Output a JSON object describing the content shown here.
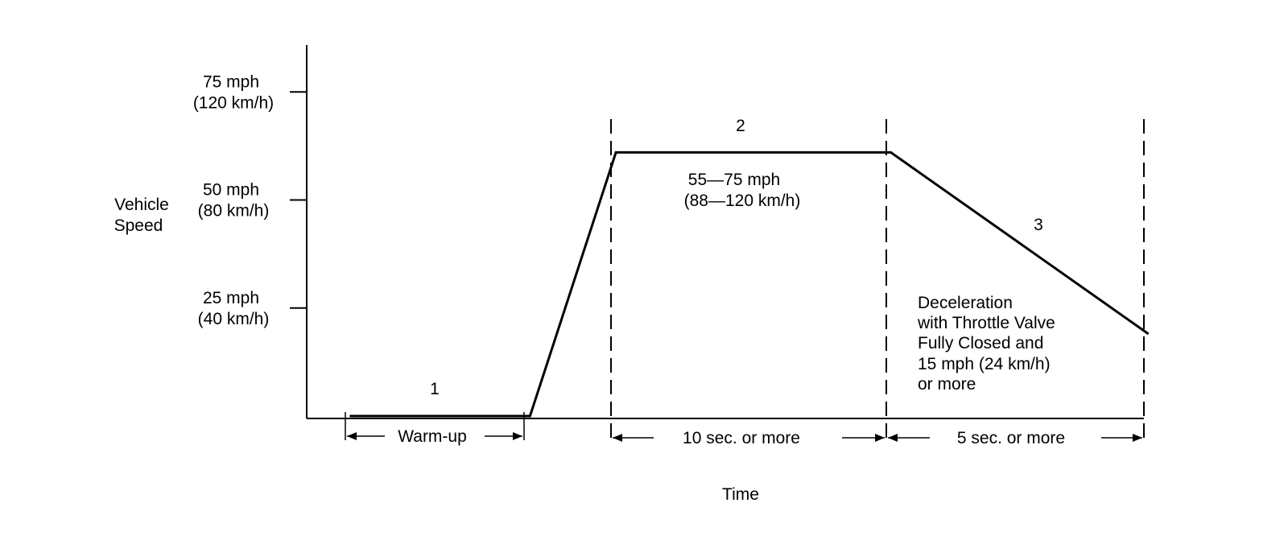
{
  "chart_data": {
    "type": "line",
    "title": "",
    "xlabel": "Time",
    "ylabel": [
      "Vehicle",
      "Speed"
    ],
    "y_ticks": [
      {
        "value": 25,
        "label": [
          "25 mph",
          "(40 km/h)"
        ]
      },
      {
        "value": 50,
        "label": [
          "50 mph",
          "(80 km/h)"
        ]
      },
      {
        "value": 75,
        "label": [
          "75 mph",
          "(120 km/h)"
        ]
      }
    ],
    "ylim": [
      0,
      85
    ],
    "x_axis_note": "time axis has no numeric scale; phase boundaries are schematic",
    "series": [
      {
        "points": [
          {
            "t": 0.5,
            "speed": 0
          },
          {
            "t": 2.6,
            "speed": 0
          },
          {
            "t": 3.6,
            "speed": 61
          },
          {
            "t": 6.8,
            "speed": 61
          },
          {
            "t": 9.8,
            "speed": 19
          }
        ]
      }
    ],
    "phases": [
      {
        "number": "1",
        "duration_label": "Warm-up",
        "start": 0.5,
        "end": 2.6
      },
      {
        "number": "2",
        "duration_label": "10 sec. or more",
        "start": 3.6,
        "end": 6.8,
        "note": [
          "55—75 mph",
          "(88—120 km/h)"
        ]
      },
      {
        "number": "3",
        "duration_label": "5 sec. or more",
        "start": 6.8,
        "end": 9.8,
        "note": [
          "Deceleration",
          "with Throttle Valve",
          "Fully Closed and",
          "15 mph (24 km/h)",
          "or more"
        ]
      }
    ]
  }
}
